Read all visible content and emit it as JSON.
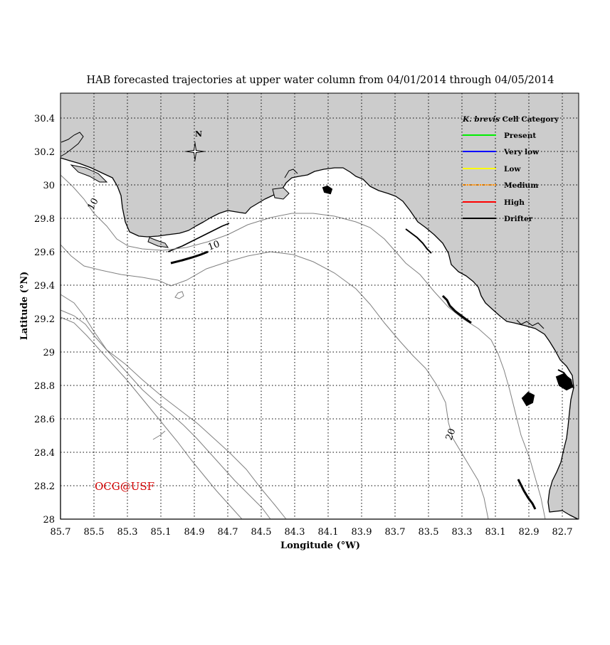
{
  "title": "HAB forecasted trajectories at upper water column from 04/01/2014 through 04/05/2014",
  "x_axis": {
    "label": "Longitude (°W)",
    "ticks": [
      "85.7",
      "85.5",
      "85.3",
      "85.1",
      "84.9",
      "84.7",
      "84.5",
      "84.3",
      "84.1",
      "83.9",
      "83.7",
      "83.5",
      "83.3",
      "83.1",
      "82.9",
      "82.7"
    ]
  },
  "y_axis": {
    "label": "Latitude (°N)",
    "ticks": [
      "28",
      "28.2",
      "28.4",
      "28.6",
      "28.8",
      "29",
      "29.2",
      "29.4",
      "29.6",
      "29.8",
      "30",
      "30.2",
      "30.4"
    ]
  },
  "compass_label": "N",
  "contour_labels": [
    "10",
    "10",
    "20"
  ],
  "legend": {
    "title_italic": "K. brevis",
    "title_rest": " Cell Category",
    "items": [
      {
        "label": "Present",
        "color": "#00ee00"
      },
      {
        "label": "Very low",
        "color": "#0000ff"
      },
      {
        "label": "Low",
        "color": "#ffff00"
      },
      {
        "label": "Medium",
        "color": "#ff8c00"
      },
      {
        "label": "High",
        "color": "#ff0000"
      },
      {
        "label": "Drifter",
        "color": "#000000"
      }
    ]
  },
  "credit": "OCG@USF",
  "colors": {
    "land": "#cccccc",
    "water": "#ffffff",
    "grid": "#000000",
    "contour": "#808080"
  }
}
